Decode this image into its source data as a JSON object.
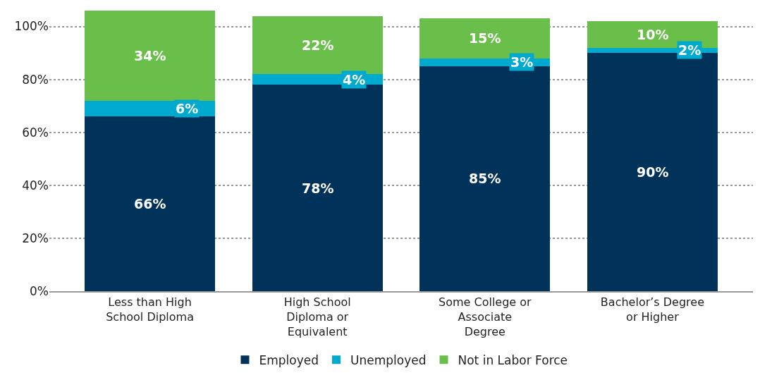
{
  "chart_data": {
    "type": "bar",
    "stacked": true,
    "categories": [
      "Less than High\nSchool Diploma",
      "High School\nDiploma or\nEquivalent",
      "Some College or\nAssociate\nDegree",
      "Bachelor’s Degree\nor Higher"
    ],
    "series": [
      {
        "name": "Employed",
        "color": "#00325a",
        "values": [
          66,
          78,
          85,
          90
        ],
        "value_labels": [
          "66%",
          "78%",
          "85%",
          "90%"
        ]
      },
      {
        "name": "Unemployed",
        "color": "#00a9ce",
        "values": [
          6,
          4,
          3,
          2
        ],
        "value_labels": [
          "6%",
          "4%",
          "3%",
          "2%"
        ]
      },
      {
        "name": "Not in Labor Force",
        "color": "#6abf4b",
        "values": [
          34,
          22,
          15,
          10
        ],
        "value_labels": [
          "34%",
          "22%",
          "15%",
          "10%"
        ]
      }
    ],
    "ylim": [
      0,
      106
    ],
    "yticks": [
      {
        "value": 0,
        "label": "0%"
      },
      {
        "value": 20,
        "label": "20%"
      },
      {
        "value": 40,
        "label": "40%"
      },
      {
        "value": 60,
        "label": "60%"
      },
      {
        "value": 80,
        "label": "80%"
      },
      {
        "value": 100,
        "label": "100%"
      }
    ],
    "grid": "y",
    "legend": "bottom"
  }
}
